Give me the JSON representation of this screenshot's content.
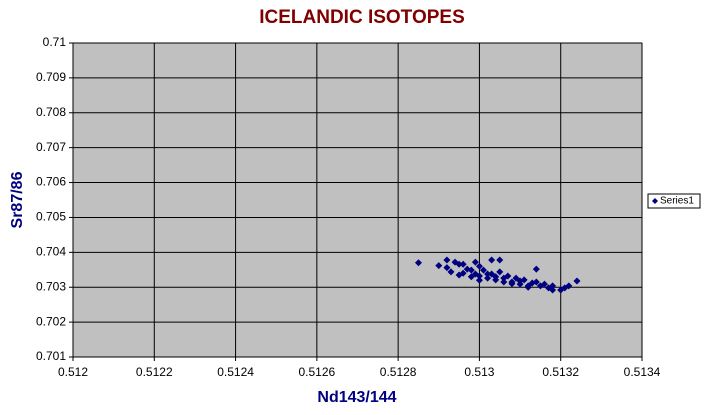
{
  "chart_data": {
    "type": "scatter",
    "title": "ICELANDIC ISOTOPES",
    "x_label": "Nd143/144",
    "y_label": "Sr87/86",
    "series": [
      {
        "name": "Series1",
        "color": "#000080",
        "x": [
          0.51285,
          0.51292,
          0.51294,
          0.51295,
          0.51292,
          0.51293,
          0.51295,
          0.51296,
          0.51298,
          0.51299,
          0.51299,
          0.513,
          0.51301,
          0.51302,
          0.51303,
          0.51305,
          0.51303,
          0.51304,
          0.51305,
          0.51306,
          0.51307,
          0.51308,
          0.51309,
          0.5131,
          0.51311,
          0.51312,
          0.51314,
          0.51315,
          0.51316,
          0.51317,
          0.51314,
          0.51318,
          0.5132,
          0.51321,
          0.51322,
          0.51324,
          0.513,
          0.51298,
          0.51302,
          0.51306,
          0.5131,
          0.51313,
          0.51296,
          0.513,
          0.51297,
          0.51308,
          0.51318,
          0.5129,
          0.51304,
          0.51312
        ],
        "values": [
          0.7037,
          0.70378,
          0.70372,
          0.70366,
          0.70356,
          0.70344,
          0.70335,
          0.70366,
          0.70349,
          0.70372,
          0.70338,
          0.70332,
          0.70349,
          0.70326,
          0.70378,
          0.70378,
          0.70338,
          0.70321,
          0.70344,
          0.70315,
          0.70332,
          0.70315,
          0.70326,
          0.70309,
          0.70321,
          0.70304,
          0.70315,
          0.70304,
          0.70309,
          0.70298,
          0.70352,
          0.70304,
          0.70292,
          0.70298,
          0.70304,
          0.70318,
          0.7032,
          0.7033,
          0.70338,
          0.70326,
          0.70318,
          0.70312,
          0.7034,
          0.7036,
          0.70352,
          0.7031,
          0.70292,
          0.70362,
          0.7033,
          0.703
        ]
      }
    ],
    "xlim": [
      0.512,
      0.5134
    ],
    "xticks": [
      0.512,
      0.5122,
      0.5124,
      0.5126,
      0.5128,
      0.513,
      0.5132,
      0.5134
    ],
    "ylim": [
      0.701,
      0.71
    ],
    "yticks": [
      0.701,
      0.702,
      0.703,
      0.704,
      0.705,
      0.706,
      0.707,
      0.708,
      0.709,
      0.71
    ],
    "grid": true,
    "legend": "right",
    "plot_background": "#c0c0c0"
  }
}
